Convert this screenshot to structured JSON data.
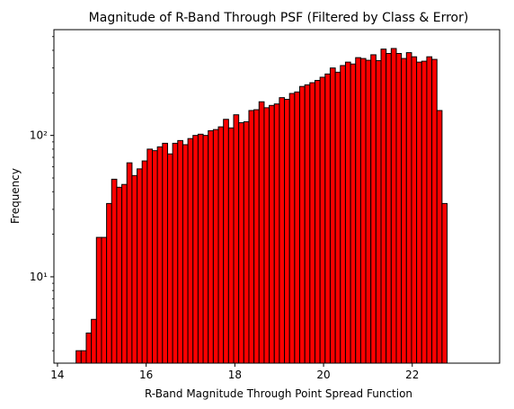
{
  "chart_data": {
    "type": "bar",
    "title": "Magnitude of R-Band Through PSF (Filtered by Class & Error)",
    "xlabel": "R-Band Magnitude Through Point Spread Function",
    "ylabel": "Frequency",
    "xlim": [
      13.92,
      23.97
    ],
    "ylim": [
      2.45,
      560
    ],
    "yscale": "log",
    "grid": false,
    "bar_color": "#ff0000",
    "edge_color": "#000000",
    "x_ticks": [
      14,
      16,
      18,
      20,
      22
    ],
    "x_tick_labels": [
      "14",
      "16",
      "18",
      "20",
      "22"
    ],
    "y_ticks": [
      10,
      100
    ],
    "y_tick_labels": [
      "10¹",
      "10²"
    ],
    "bin_start": 14.42,
    "bin_width": 0.1146,
    "values": [
      3,
      3,
      4,
      5,
      19,
      19,
      33,
      49,
      43,
      45,
      64,
      52,
      58,
      66,
      80,
      78,
      83,
      88,
      74,
      88,
      92,
      86,
      95,
      100,
      102,
      100,
      108,
      110,
      115,
      130,
      113,
      140,
      123,
      125,
      150,
      152,
      173,
      157,
      163,
      167,
      185,
      180,
      198,
      203,
      222,
      228,
      236,
      245,
      258,
      272,
      300,
      280,
      312,
      330,
      320,
      355,
      350,
      340,
      372,
      338,
      408,
      380,
      412,
      380,
      350,
      385,
      360,
      330,
      335,
      360,
      345,
      150,
      33
    ]
  }
}
